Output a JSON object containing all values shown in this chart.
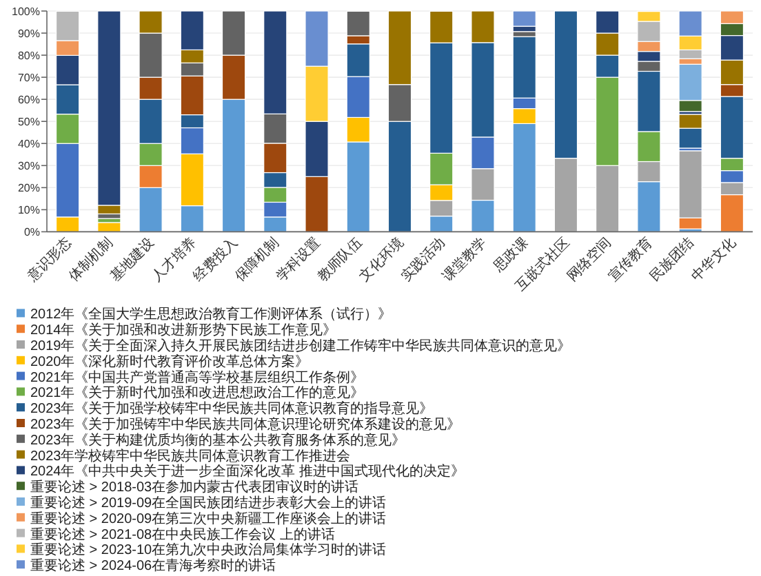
{
  "chart_data": {
    "type": "bar",
    "stacked": true,
    "legend": "bottom",
    "grid": "y",
    "categories": [
      "意识形态",
      "体制机制",
      "基地建设",
      "人才培养",
      "经费投入",
      "保障机制",
      "学科设置",
      "教师队伍",
      "文化环境",
      "实践活动",
      "课堂教学",
      "思政课",
      "互嵌式社区",
      "网络空间",
      "宣传教育",
      "民族团结",
      "中华文化"
    ],
    "ylim": [
      0,
      100
    ],
    "yticks": [
      {
        "value": 0,
        "label": "0%"
      },
      {
        "value": 10,
        "label": "10%"
      },
      {
        "value": 20,
        "label": "20%"
      },
      {
        "value": 30,
        "label": "30%"
      },
      {
        "value": 40,
        "label": "40%"
      },
      {
        "value": 50,
        "label": "50%"
      },
      {
        "value": 60,
        "label": "60%"
      },
      {
        "value": 70,
        "label": "70%"
      },
      {
        "value": 80,
        "label": "80%"
      },
      {
        "value": 90,
        "label": "90%"
      },
      {
        "value": 100,
        "label": "100%"
      }
    ],
    "series": [
      {
        "name": "2012年《全国大学生思想政治教育工作测评体系（试行）》",
        "color": "#5b9bd5",
        "values": [
          null,
          null,
          20,
          11.8,
          60,
          6.7,
          null,
          40.7,
          null,
          7.1,
          14.3,
          49.0,
          null,
          null,
          22.7,
          1.3,
          null
        ]
      },
      {
        "name": "2014年《关于加强和改进新形势下民族工作意见》",
        "color": "#ed7d31",
        "values": [
          null,
          null,
          10,
          null,
          null,
          null,
          null,
          null,
          null,
          null,
          null,
          null,
          null,
          null,
          null,
          5.0,
          16.8
        ]
      },
      {
        "name": "2019年《关于全面深入持久开展民族团结进步创建工作铸牢中华民族共同体意识的意见》",
        "color": "#a5a5a5",
        "values": [
          null,
          null,
          null,
          null,
          null,
          null,
          null,
          null,
          null,
          7.1,
          14.3,
          null,
          33.3,
          30,
          9.1,
          30.4,
          5.5
        ]
      },
      {
        "name": "2020年《深化新时代教育评价改革总体方案》",
        "color": "#ffc000",
        "values": [
          6.7,
          4.2,
          null,
          23.5,
          null,
          null,
          null,
          11.1,
          null,
          7.1,
          null,
          6.8,
          null,
          null,
          null,
          null,
          null
        ]
      },
      {
        "name": "2021年《中国共产党普通高等学校基层组织工作条例》",
        "color": "#4472c4",
        "values": [
          33.3,
          null,
          null,
          11.8,
          null,
          6.7,
          null,
          18.5,
          null,
          null,
          14.3,
          4.8,
          null,
          null,
          null,
          1.2,
          5.4
        ]
      },
      {
        "name": "2021年《关于新时代加强和改进思想政治工作的意见》",
        "color": "#70ad47",
        "values": [
          13.3,
          1.8,
          10,
          null,
          null,
          6.7,
          null,
          null,
          null,
          14.3,
          null,
          null,
          null,
          40,
          13.6,
          null,
          5.6
        ]
      },
      {
        "name": "2023年《关于加强学校铸牢中华民族共同体意识教育的指导意见》",
        "color": "#255e91",
        "values": [
          13.3,
          null,
          20,
          5.9,
          null,
          6.7,
          null,
          14.8,
          50,
          50,
          42.8,
          27.8,
          66.7,
          10,
          27.3,
          9.0,
          28.0
        ]
      },
      {
        "name": "2023年《关于加强铸牢中华民族共同体意识理论研究体系建设的意见》",
        "color": "#9e480e",
        "values": [
          null,
          null,
          10,
          17.6,
          20,
          13.3,
          25,
          3.7,
          null,
          null,
          null,
          null,
          null,
          null,
          null,
          null,
          5.4
        ]
      },
      {
        "name": "2023年《关于构建优质均衡的基本公共教育服务体系的意见》",
        "color": "#636363",
        "values": [
          null,
          2.1,
          20,
          5.9,
          20,
          13.3,
          null,
          11.1,
          16.7,
          null,
          null,
          2.3,
          null,
          null,
          4.5,
          null,
          null
        ]
      },
      {
        "name": "2023年学校铸牢中华民族共同体意识教育工作推进会",
        "color": "#997300",
        "values": [
          null,
          3.9,
          10,
          5.9,
          null,
          null,
          null,
          null,
          33.3,
          14.3,
          14.3,
          null,
          null,
          10,
          null,
          6.3,
          11.1
        ]
      },
      {
        "name": "2024年《中共中央关于进一步全面深化改革 推进中国式现代化的决定》",
        "color": "#264478",
        "values": [
          13.3,
          88,
          null,
          17.6,
          null,
          46.6,
          25,
          null,
          null,
          null,
          null,
          2.4,
          null,
          10,
          4.5,
          1.3,
          11.1
        ]
      },
      {
        "name": "重要论述 > 2018-03在参加内蒙古代表团审议时的讲话",
        "color": "#43682b",
        "values": [
          null,
          null,
          null,
          null,
          null,
          null,
          null,
          null,
          null,
          null,
          null,
          null,
          null,
          null,
          null,
          5.0,
          5.4
        ]
      },
      {
        "name": "重要论述 > 2019-09在全国民族团结进步表彰大会上的讲话",
        "color": "#7cafdd",
        "values": [
          null,
          null,
          null,
          null,
          null,
          null,
          null,
          null,
          null,
          null,
          null,
          null,
          null,
          null,
          null,
          16.4,
          null
        ]
      },
      {
        "name": "重要论述 > 2020-09在第三次中央新疆工作座谈会上的讲话",
        "color": "#f1975a",
        "values": [
          6.7,
          null,
          null,
          null,
          null,
          null,
          null,
          null,
          null,
          null,
          null,
          null,
          null,
          null,
          4.5,
          2.5,
          5.7
        ]
      },
      {
        "name": "重要论述 > 2021-08在中央民族工作会议 上的讲话",
        "color": "#b7b7b7",
        "values": [
          13.3,
          null,
          null,
          null,
          null,
          null,
          null,
          null,
          null,
          null,
          null,
          null,
          null,
          null,
          9.1,
          4.0,
          null
        ]
      },
      {
        "name": "重要论述 > 2023-10在第九次中央政治局集体学习时的讲话",
        "color": "#ffcd33",
        "values": [
          null,
          null,
          null,
          null,
          null,
          null,
          25,
          null,
          null,
          null,
          null,
          null,
          null,
          null,
          4.5,
          6.3,
          null
        ]
      },
      {
        "name": "重要论述 > 2024-06在青海考察时的讲话",
        "color": "#698ed0",
        "values": [
          null,
          null,
          null,
          null,
          null,
          null,
          25,
          null,
          null,
          null,
          null,
          6.9,
          null,
          null,
          null,
          11.3,
          null
        ]
      }
    ]
  }
}
